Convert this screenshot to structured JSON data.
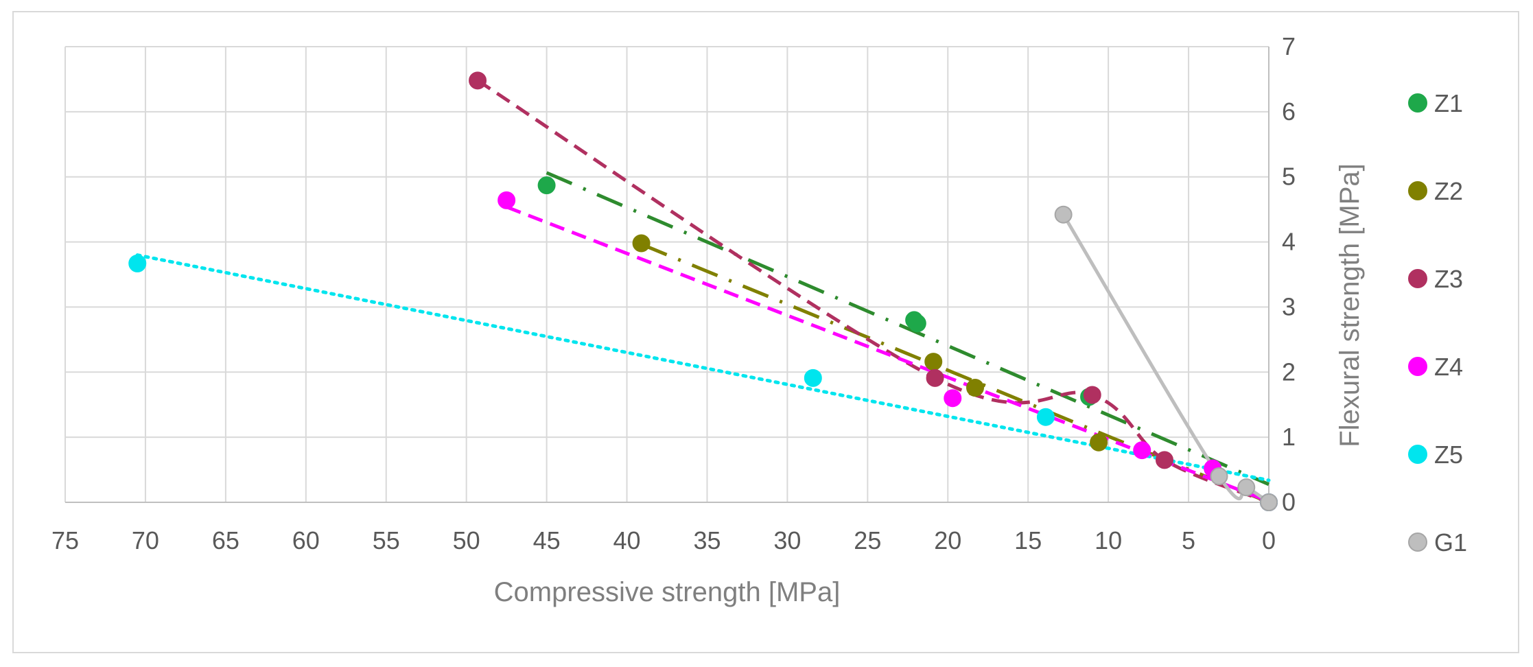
{
  "chart_data": {
    "type": "scatter",
    "xlabel": "Compressive strength [MPa]",
    "ylabel": "Flexural strength [MPa]",
    "xlim": [
      75,
      0
    ],
    "ylim": [
      0,
      7
    ],
    "x_reversed": true,
    "grid": true,
    "legend_position": "right",
    "x_ticks": [
      75,
      70,
      65,
      60,
      55,
      50,
      45,
      40,
      35,
      30,
      25,
      20,
      15,
      10,
      5,
      0
    ],
    "y_ticks": [
      0,
      1,
      2,
      3,
      4,
      5,
      6,
      7
    ],
    "series": [
      {
        "name": "Z1",
        "color": "#1ea84a",
        "trend_color": "#2e8b2e",
        "trend": "linear",
        "trend_style": "long-dash-dot",
        "points": [
          [
            45,
            4.87
          ],
          [
            22.1,
            2.8
          ],
          [
            21.9,
            2.75
          ],
          [
            11.2,
            1.62
          ],
          [
            0,
            0
          ]
        ]
      },
      {
        "name": "Z2",
        "color": "#808000",
        "trend_color": "#808000",
        "trend": "linear",
        "trend_style": "long-dash-dot",
        "points": [
          [
            39.1,
            3.98
          ],
          [
            20.9,
            2.16
          ],
          [
            18.3,
            1.76
          ],
          [
            10.6,
            0.92
          ],
          [
            0,
            0
          ]
        ]
      },
      {
        "name": "Z3",
        "color": "#b03060",
        "trend_color": "#b03060",
        "trend": "curve",
        "trend_style": "dashed",
        "points": [
          [
            49.3,
            6.48
          ],
          [
            20.8,
            1.91
          ],
          [
            11,
            1.65
          ],
          [
            6.5,
            0.65
          ],
          [
            0,
            0
          ]
        ]
      },
      {
        "name": "Z4",
        "color": "#ff00ff",
        "trend_color": "#ff00ff",
        "trend": "linear",
        "trend_style": "dashed",
        "points": [
          [
            47.5,
            4.64
          ],
          [
            19.7,
            1.6
          ],
          [
            7.9,
            0.8
          ],
          [
            3.5,
            0.52
          ],
          [
            0,
            0
          ]
        ]
      },
      {
        "name": "Z5",
        "color": "#00e5ee",
        "trend_color": "#00e5ee",
        "trend": "linear",
        "trend_style": "dotted",
        "points": [
          [
            70.5,
            3.67
          ],
          [
            28.4,
            1.91
          ],
          [
            13.9,
            1.31
          ],
          [
            0,
            0
          ]
        ]
      },
      {
        "name": "G1",
        "color": "#bebebe",
        "trend_color": "#bebebe",
        "trend": "curve",
        "trend_style": "solid",
        "points": [
          [
            12.8,
            4.42
          ],
          [
            3.1,
            0.4
          ],
          [
            1.4,
            0.23
          ],
          [
            0,
            0
          ]
        ]
      }
    ]
  }
}
